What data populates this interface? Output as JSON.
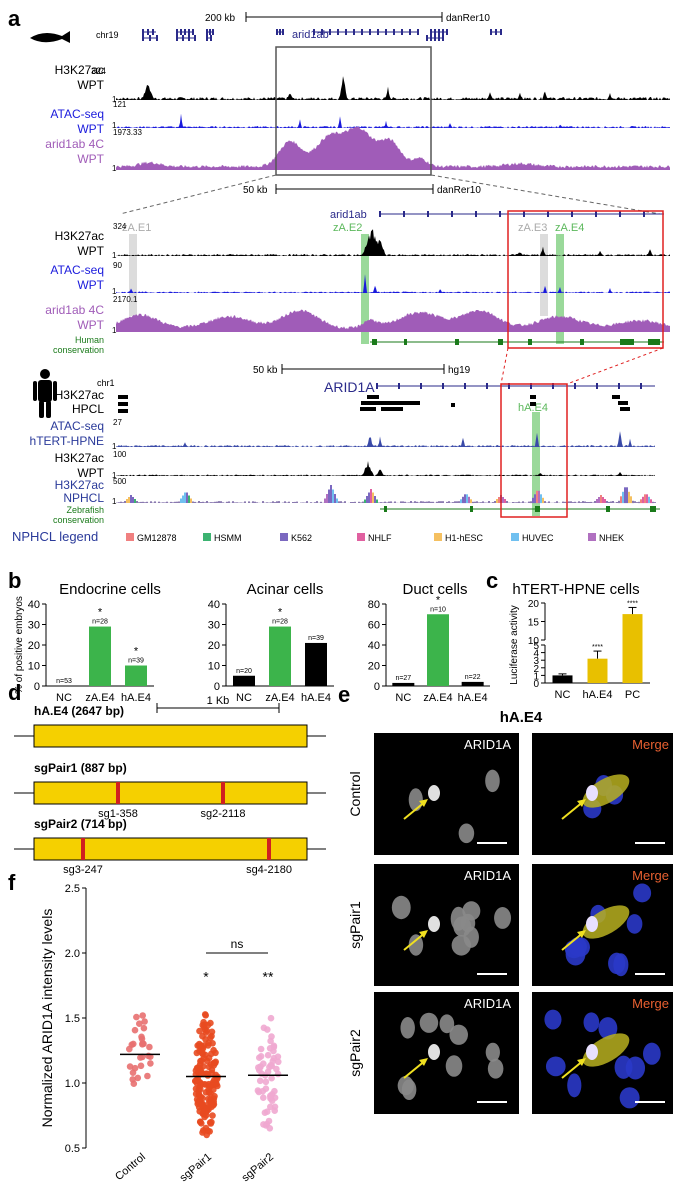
{
  "panels": {
    "a": "a",
    "b": "b",
    "c": "c",
    "d": "d",
    "e": "e",
    "f": "f"
  },
  "panel_a": {
    "zebrafish_top": {
      "chrom": "chr19",
      "scale": "200 kb",
      "assembly": "danRer10",
      "gene": "arid1ab",
      "tracks": [
        {
          "name": "H3K27ac",
          "sample": "WPT",
          "max": "324",
          "min": "1",
          "color": "#000000"
        },
        {
          "name": "ATAC-seq",
          "sample": "WPT",
          "max": "121",
          "min": "1",
          "color": "#1a1adc"
        },
        {
          "name": "arid1ab 4C",
          "sample": "WPT",
          "max": "1973.33",
          "min": "1",
          "color": "#a05cb8"
        }
      ]
    },
    "zebrafish_zoom": {
      "scale": "50 kb",
      "assembly": "danRer10",
      "gene": "arid1ab",
      "elements": [
        "zA.E1",
        "zA.E2",
        "zA.E3",
        "zA.E4"
      ],
      "tracks": [
        {
          "name": "H3K27ac",
          "sample": "WPT",
          "max": "324",
          "min": "1"
        },
        {
          "name": "ATAC-seq",
          "sample": "WPT",
          "max": "90",
          "min": "1"
        },
        {
          "name": "arid1ab 4C",
          "sample": "WPT",
          "max": "2170.1",
          "min": "1"
        },
        {
          "name": "Human",
          "sample": "conservation"
        }
      ]
    },
    "human": {
      "chrom": "chr1",
      "scale": "50 kb",
      "assembly": "hg19",
      "gene": "ARID1A",
      "element": "hA.E4",
      "tracks": [
        {
          "name": "H3K27ac",
          "sample": "HPCL"
        },
        {
          "name": "ATAC-seq",
          "sample": "hTERT-HPNE",
          "max": "27",
          "min": "1"
        },
        {
          "name": "H3K27ac",
          "sample": "WPT",
          "max": "100",
          "min": "1"
        },
        {
          "name": "H3K27ac",
          "sample": "NPHCL",
          "max": "500",
          "min": "1"
        },
        {
          "name": "Zebrafish",
          "sample": "conservation"
        }
      ]
    },
    "legend": {
      "title": "NPHCL legend",
      "items": [
        {
          "label": "GM12878",
          "color": "#f08080"
        },
        {
          "label": "HSMM",
          "color": "#3cb371"
        },
        {
          "label": "K562",
          "color": "#7b68c0"
        },
        {
          "label": "NHLF",
          "color": "#e060a0"
        },
        {
          "label": "H1-hESC",
          "color": "#f5c060"
        },
        {
          "label": "HUVEC",
          "color": "#70c0f0"
        },
        {
          "label": "NHEK",
          "color": "#b070c0"
        }
      ]
    }
  },
  "chart_data": [
    {
      "type": "bar",
      "title": "Endocrine cells",
      "ylabel": "% of positive embryos",
      "ylim": [
        0,
        40
      ],
      "yticks": [
        0,
        10,
        20,
        30,
        40
      ],
      "categories": [
        "NC",
        "zA.E4",
        "hA.E4"
      ],
      "values": [
        0,
        29,
        10
      ],
      "n_labels": [
        "n=53",
        "n=28",
        "n=39"
      ],
      "significance": [
        "",
        "*",
        "*"
      ],
      "colors": [
        "#000000",
        "#3cb44b",
        "#3cb44b"
      ]
    },
    {
      "type": "bar",
      "title": "Acinar cells",
      "ylim": [
        0,
        40
      ],
      "yticks": [
        0,
        10,
        20,
        30,
        40
      ],
      "categories": [
        "NC",
        "zA.E4",
        "hA.E4"
      ],
      "values": [
        5,
        29,
        21
      ],
      "n_labels": [
        "n=20",
        "n=28",
        "n=39"
      ],
      "significance": [
        "",
        "*",
        ""
      ],
      "colors": [
        "#000000",
        "#3cb44b",
        "#000000"
      ]
    },
    {
      "type": "bar",
      "title": "Duct cells",
      "ylim": [
        0,
        80
      ],
      "yticks": [
        0,
        20,
        40,
        60,
        80
      ],
      "categories": [
        "NC",
        "zA.E4",
        "hA.E4"
      ],
      "values": [
        3,
        70,
        4
      ],
      "n_labels": [
        "n=27",
        "n=10",
        "n=22"
      ],
      "significance": [
        "",
        "*",
        ""
      ],
      "colors": [
        "#000000",
        "#3cb44b",
        "#000000"
      ]
    },
    {
      "type": "bar",
      "title": "hTERT-HPNE cells",
      "ylabel": "Luciferase activity",
      "yticks": [
        "0",
        "1",
        "2",
        "3",
        "4",
        "5",
        "10",
        "15",
        "20"
      ],
      "categories": [
        "NC",
        "hA.E4",
        "PC"
      ],
      "values": [
        1,
        3.2,
        17
      ],
      "errors": [
        0.2,
        1.0,
        1.8
      ],
      "significance": [
        "",
        "****",
        "****"
      ],
      "colors": [
        "#000000",
        "#e8c000",
        "#e8c000"
      ]
    },
    {
      "type": "scatter",
      "ylabel": "Normalized ARID1A intensity levels",
      "ylim": [
        0.5,
        2.5
      ],
      "yticks": [
        "0.5",
        "1.0",
        "1.5",
        "2.0",
        "2.5"
      ],
      "categories": [
        "Control",
        "sgPair1",
        "sgPair2"
      ],
      "medians": [
        1.22,
        1.05,
        1.06
      ],
      "significance": [
        "",
        "*",
        "**"
      ],
      "bracket": "ns",
      "colors": [
        "#e87070",
        "#e84a20",
        "#f0a8d0"
      ]
    }
  ],
  "panel_d": {
    "scale": "1 Kb",
    "constructs": [
      {
        "label": "hA.E4 (2647 bp)",
        "cuts": []
      },
      {
        "label": "sgPair1 (887 bp)",
        "cuts": [
          "sg1-358",
          "sg2-2118"
        ]
      },
      {
        "label": "sgPair2 (714 bp)",
        "cuts": [
          "sg3-247",
          "sg4-2180"
        ]
      }
    ]
  },
  "panel_e": {
    "title": "hA.E4",
    "rows": [
      "Control",
      "sgPair1",
      "sgPair2"
    ],
    "channel_label": "ARID1A",
    "merge_label": "Merge"
  }
}
